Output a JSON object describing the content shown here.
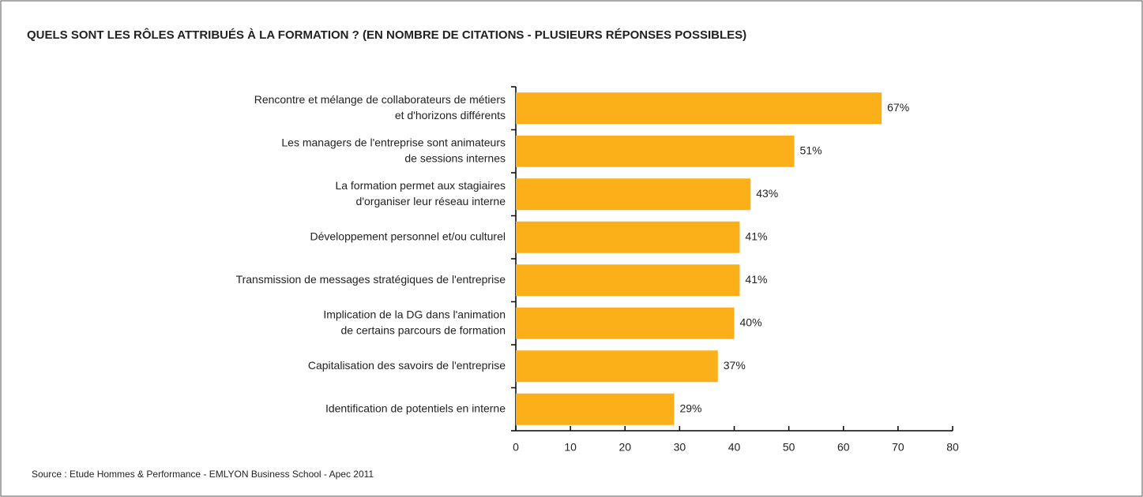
{
  "chart_data": {
    "type": "bar",
    "orientation": "horizontal",
    "title": "QUELS SONT LES RÔLES ATTRIBUÉS À LA FORMATION ? (EN NOMBRE DE CITATIONS - PLUSIEURS RÉPONSES POSSIBLES)",
    "categories": [
      [
        "Rencontre et mélange de collaborateurs de métiers",
        "et d'horizons différents"
      ],
      [
        "Les managers de l'entreprise sont animateurs",
        "de sessions internes"
      ],
      [
        "La formation permet aux stagiaires",
        "d'organiser leur réseau interne"
      ],
      [
        "Développement personnel et/ou culturel"
      ],
      [
        "Transmission de messages stratégiques de l'entreprise"
      ],
      [
        "Implication de la DG dans l'animation",
        "de certains parcours de formation"
      ],
      [
        "Capitalisation des savoirs de l'entreprise"
      ],
      [
        "Identification de potentiels en interne"
      ]
    ],
    "values": [
      67,
      51,
      43,
      41,
      41,
      40,
      37,
      29
    ],
    "value_labels": [
      "67%",
      "51%",
      "43%",
      "41%",
      "41%",
      "40%",
      "37%",
      "29%"
    ],
    "color": "#fbb01a",
    "xlim": [
      0,
      80
    ],
    "xticks": [
      0,
      10,
      20,
      30,
      40,
      50,
      60,
      70,
      80
    ],
    "grid": false,
    "source": "Source : Etude Hommes & Performance - EMLYON Business School - Apec 2011"
  }
}
